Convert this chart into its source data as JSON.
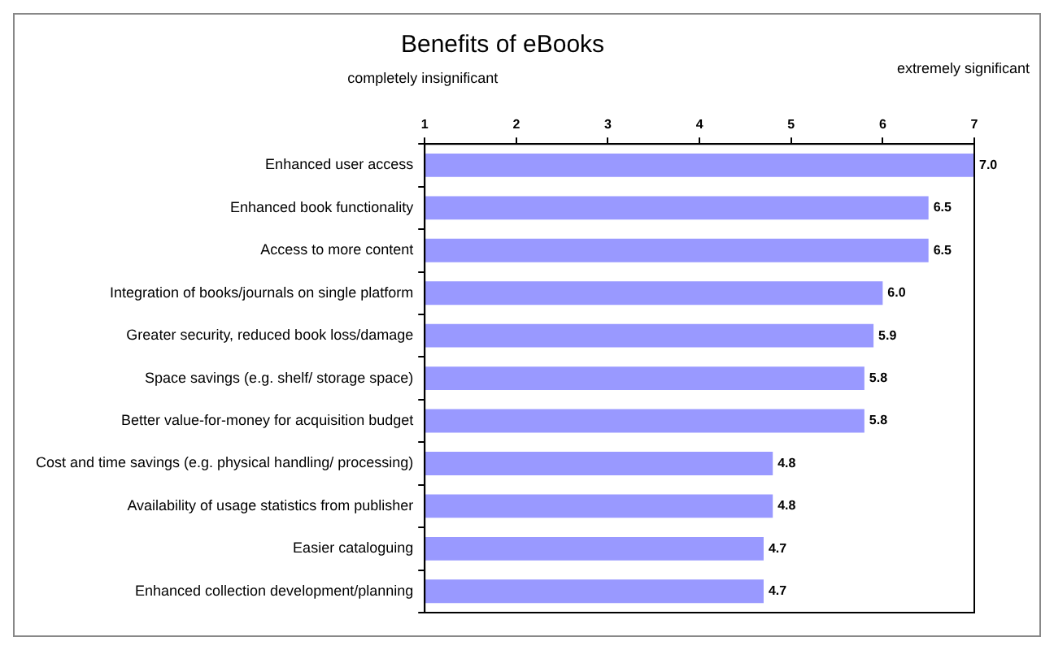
{
  "chart_data": {
    "type": "bar",
    "orientation": "horizontal",
    "title": "Benefits of eBooks",
    "categories": [
      "Enhanced user access",
      "Enhanced book functionality",
      "Access to more content",
      "Integration of books/journals on single platform",
      "Greater security, reduced book loss/damage",
      "Space savings (e.g. shelf/ storage space)",
      "Better value-for-money for acquisition budget",
      "Cost and time savings (e.g. physical handling/ processing)",
      "Availability of usage statistics from publisher",
      "Easier cataloguing",
      "Enhanced collection development/planning"
    ],
    "values": [
      7.0,
      6.5,
      6.5,
      6.0,
      5.9,
      5.8,
      5.8,
      4.8,
      4.8,
      4.7,
      4.7
    ],
    "color": "#9999ff",
    "xlim": [
      1,
      7
    ],
    "xticks": [
      1,
      2,
      3,
      4,
      5,
      6,
      7
    ],
    "grid": false,
    "legend": false,
    "value_labels": [
      "7.0",
      "6.5",
      "6.5",
      "6.0",
      "5.9",
      "5.8",
      "5.8",
      "4.8",
      "4.8",
      "4.7",
      "4.7"
    ],
    "annotations": [
      "completely insignificant",
      "extremely significant"
    ]
  }
}
